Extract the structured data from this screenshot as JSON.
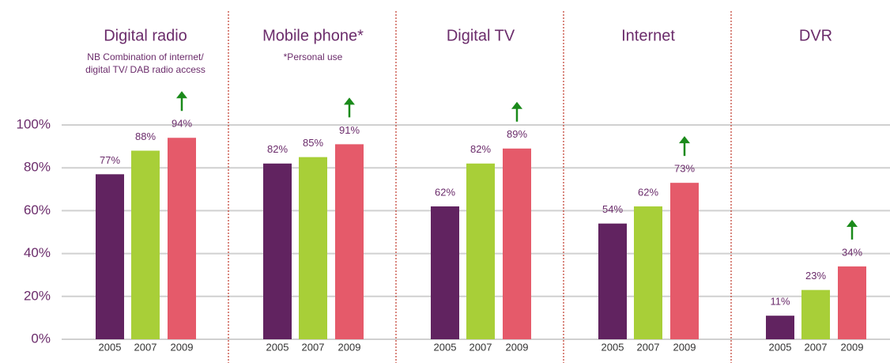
{
  "chart_data": {
    "type": "bar",
    "categories": [
      "Digital radio",
      "Mobile phone*",
      "Digital TV",
      "Internet",
      "DVR"
    ],
    "notes": [
      [
        "NB Combination of internet/",
        "digital TV/ DAB radio access"
      ],
      [
        "*Personal use"
      ],
      [],
      [],
      []
    ],
    "series": [
      {
        "name": "2005",
        "color": "#612360",
        "values": [
          77,
          82,
          62,
          54,
          11
        ],
        "value_labels": [
          "77%",
          "82%",
          "62%",
          "54%",
          "11%"
        ]
      },
      {
        "name": "2007",
        "color": "#a8cf38",
        "values": [
          88,
          85,
          82,
          62,
          23
        ],
        "value_labels": [
          "88%",
          "85%",
          "82%",
          "62%",
          "23%"
        ]
      },
      {
        "name": "2009",
        "color": "#e55a6a",
        "values": [
          94,
          91,
          89,
          73,
          34
        ],
        "value_labels": [
          "94%",
          "91%",
          "89%",
          "73%",
          "34%"
        ]
      }
    ],
    "ylim": [
      0,
      100
    ],
    "yticks": [
      {
        "value": 0,
        "label": "0%"
      },
      {
        "value": 20,
        "label": "20%"
      },
      {
        "value": 40,
        "label": "40%"
      },
      {
        "value": 60,
        "label": "60%"
      },
      {
        "value": 80,
        "label": "80%"
      },
      {
        "value": 100,
        "label": "100%"
      }
    ],
    "grid": true,
    "arrow_color": "#1a8a1a",
    "separator_color": "#c0392b"
  }
}
